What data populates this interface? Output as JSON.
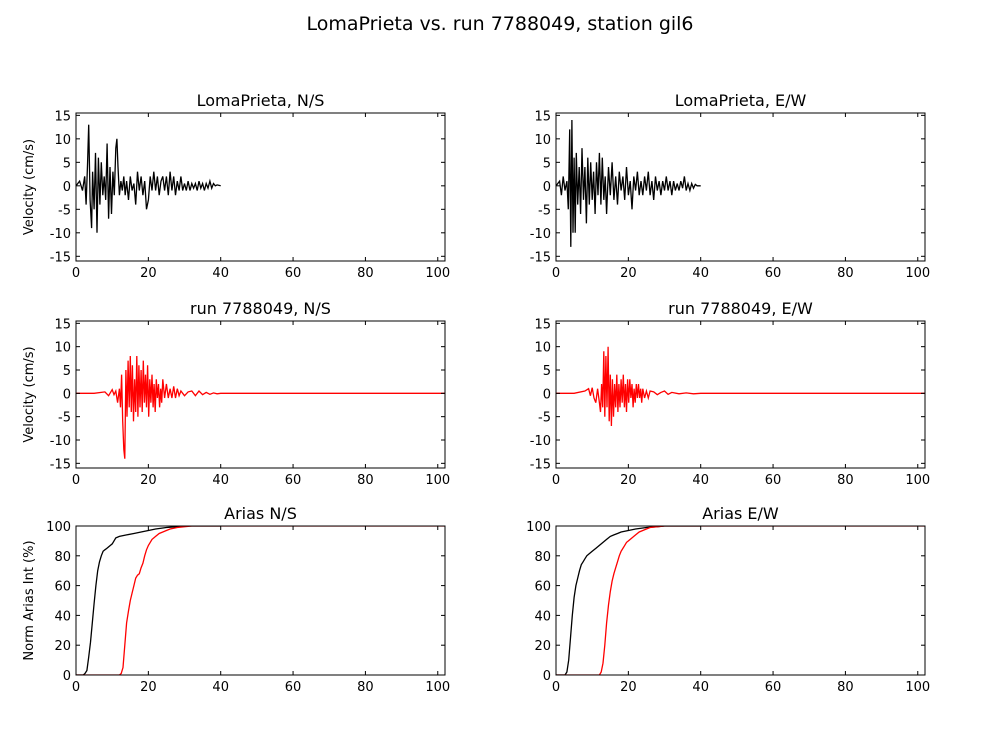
{
  "figure_title": "LomaPrieta vs. run 7788049, station gil6",
  "colors": {
    "recorded": "#000000",
    "simulated": "#ff0000"
  },
  "chart_data": [
    {
      "type": "line",
      "title": "LomaPrieta, N/S",
      "ylabel": "Velocity (cm/s)",
      "xlim": [
        0,
        102
      ],
      "ylim": [
        -16,
        15.5
      ],
      "xticks": [
        "0",
        "20",
        "40",
        "60",
        "80",
        "100"
      ],
      "yticks": [
        "-15",
        "-10",
        "-5",
        "0",
        "5",
        "10",
        "15"
      ],
      "series": [
        {
          "color": "#000000",
          "x": [
            0,
            1,
            1.8,
            2.4,
            2.8,
            3.2,
            3.5,
            3.9,
            4.3,
            4.6,
            5,
            5.4,
            5.8,
            6.2,
            6.6,
            7,
            7.4,
            7.8,
            8.2,
            8.6,
            9,
            9.4,
            9.8,
            10.2,
            10.6,
            11,
            11.3,
            11.6,
            12,
            12.4,
            12.8,
            13.2,
            13.6,
            14,
            14.5,
            15,
            15.5,
            16,
            16.5,
            17,
            17.5,
            18,
            18.5,
            19,
            19.5,
            20,
            20.5,
            21,
            21.5,
            22,
            22.5,
            23,
            23.5,
            24,
            24.5,
            25,
            25.5,
            26,
            26.5,
            27,
            27.5,
            28,
            28.5,
            29,
            29.5,
            30,
            30.5,
            31,
            31.5,
            32,
            32.5,
            33,
            33.5,
            34,
            34.5,
            35,
            35.5,
            36,
            36.5,
            37,
            37.5,
            38,
            38.5,
            39,
            40
          ],
          "values": [
            0,
            1,
            -1,
            2,
            -4,
            5,
            13,
            -3,
            -9,
            3,
            -5,
            7,
            -10,
            6,
            -4,
            5,
            -2,
            2,
            -3,
            9,
            -7,
            4,
            -6,
            3,
            -2,
            8,
            10,
            4,
            -2,
            1,
            -1,
            2,
            -2,
            1,
            -3,
            2,
            -1,
            0.5,
            -4,
            3,
            -1,
            2,
            -2,
            1,
            -5,
            -3,
            2,
            -1,
            3,
            -1,
            2,
            -2,
            1,
            2,
            -1,
            2,
            -2,
            3,
            -1,
            2,
            -2,
            1,
            -1,
            2,
            -1,
            0.5,
            -1,
            1,
            -1,
            0.5,
            -0.5,
            0.5,
            -1,
            1,
            -0.5,
            0.5,
            -1,
            0.5,
            -0.5,
            1,
            -0.5,
            0.5,
            0,
            0.2,
            0
          ]
        }
      ]
    },
    {
      "type": "line",
      "title": "LomaPrieta, E/W",
      "ylabel": "",
      "xlim": [
        0,
        102
      ],
      "ylim": [
        -16,
        15.5
      ],
      "xticks": [
        "0",
        "20",
        "40",
        "60",
        "80",
        "100"
      ],
      "yticks": [
        "-15",
        "-10",
        "-5",
        "0",
        "5",
        "10",
        "15"
      ],
      "series": [
        {
          "color": "#000000",
          "x": [
            0,
            1,
            1.5,
            2,
            2.5,
            3,
            3.4,
            3.8,
            4.1,
            4.4,
            4.7,
            5,
            5.3,
            5.6,
            6,
            6.4,
            6.8,
            7.2,
            7.6,
            8,
            8.4,
            8.8,
            9.2,
            9.6,
            10,
            10.4,
            10.8,
            11.2,
            11.6,
            12,
            12.4,
            12.8,
            13.2,
            13.6,
            14,
            14.5,
            15,
            15.5,
            16,
            16.5,
            17,
            17.5,
            18,
            18.5,
            19,
            19.5,
            20,
            20.5,
            21,
            21.5,
            22,
            22.5,
            23,
            23.5,
            24,
            24.5,
            25,
            25.5,
            26,
            26.5,
            27,
            27.5,
            28,
            28.5,
            29,
            29.5,
            30,
            30.5,
            31,
            31.5,
            32,
            32.5,
            33,
            33.5,
            34,
            34.5,
            35,
            35.5,
            36,
            36.5,
            37,
            37.5,
            38,
            38.5,
            39,
            40
          ],
          "values": [
            0,
            1,
            -2,
            2,
            -1,
            1,
            -5,
            12,
            -13,
            14,
            -10,
            6,
            -10,
            7,
            -4,
            4,
            -6,
            8,
            -3,
            4,
            -8,
            6,
            -4,
            5,
            -3,
            3,
            -6,
            5,
            -2,
            7,
            -4,
            6,
            -3,
            2,
            -6,
            4,
            -2,
            5,
            -3,
            2,
            -4,
            3,
            -1,
            2,
            -3,
            4,
            -2,
            1,
            -5,
            2,
            -1,
            3,
            -2,
            1,
            -2,
            2,
            -1,
            3,
            -2,
            1,
            -3,
            2,
            -1,
            1,
            -2,
            1,
            -1,
            2,
            -1,
            1,
            -2,
            1,
            -1,
            0.5,
            -1,
            1,
            -0.5,
            2,
            -1,
            0.5,
            -1,
            0.5,
            -0.5,
            0.3,
            0,
            0
          ]
        }
      ]
    },
    {
      "type": "line",
      "title": "run 7788049, N/S",
      "ylabel": "Velocity (cm/s)",
      "xlim": [
        0,
        102
      ],
      "ylim": [
        -16,
        15.5
      ],
      "xticks": [
        "0",
        "20",
        "40",
        "60",
        "80",
        "100"
      ],
      "yticks": [
        "-15",
        "-10",
        "-5",
        "0",
        "5",
        "10",
        "15"
      ],
      "series": [
        {
          "color": "#ff0000",
          "x": [
            0,
            5,
            8,
            9,
            10,
            10.5,
            11,
            11.5,
            12,
            12.3,
            12.6,
            12.9,
            13.2,
            13.5,
            13.8,
            14.1,
            14.4,
            14.7,
            15,
            15.3,
            15.6,
            15.9,
            16.2,
            16.5,
            16.8,
            17.1,
            17.4,
            17.7,
            18,
            18.3,
            18.6,
            18.9,
            19.2,
            19.5,
            19.8,
            20.1,
            20.4,
            20.7,
            21,
            21.3,
            21.6,
            21.9,
            22.2,
            22.5,
            22.8,
            23.1,
            23.4,
            23.7,
            24,
            24.5,
            25,
            25.5,
            26,
            26.5,
            27,
            27.5,
            28,
            28.5,
            29,
            30,
            31,
            32,
            33,
            34,
            35,
            36,
            37,
            38,
            39,
            40,
            45,
            60,
            80,
            102
          ],
          "values": [
            0,
            0,
            0.3,
            -0.5,
            0.8,
            -0.3,
            0.5,
            -2,
            1,
            -3,
            4,
            -6,
            -12,
            -14,
            5,
            -5,
            7,
            -3,
            8,
            -4,
            6,
            -6,
            3,
            -4,
            8,
            -5,
            6,
            -3,
            5,
            -4,
            7,
            -2,
            4,
            -3,
            6,
            -5,
            3,
            -2,
            4,
            -3,
            2,
            -4,
            3,
            -1,
            2,
            -3,
            1,
            -2,
            3,
            -1,
            2,
            -1,
            1,
            -1,
            1.5,
            -1,
            1,
            -0.5,
            0.5,
            -0.5,
            0.3,
            0.5,
            -0.5,
            0.5,
            -0.3,
            0.2,
            -0.2,
            0.1,
            -0.1,
            0,
            0,
            0,
            0,
            0
          ]
        }
      ]
    },
    {
      "type": "line",
      "title": "run 7788049, E/W",
      "ylabel": "",
      "xlim": [
        0,
        102
      ],
      "ylim": [
        -16,
        15.5
      ],
      "xticks": [
        "0",
        "20",
        "40",
        "60",
        "80",
        "100"
      ],
      "yticks": [
        "-15",
        "-10",
        "-5",
        "0",
        "5",
        "10",
        "15"
      ],
      "series": [
        {
          "color": "#ff0000",
          "x": [
            0,
            5,
            8,
            9,
            9.5,
            10,
            10.5,
            11,
            11.5,
            12,
            12.3,
            12.6,
            12.9,
            13.2,
            13.5,
            13.8,
            14.1,
            14.4,
            14.7,
            15,
            15.3,
            15.6,
            15.9,
            16.2,
            16.5,
            16.8,
            17.1,
            17.4,
            17.7,
            18,
            18.3,
            18.6,
            18.9,
            19.2,
            19.5,
            19.8,
            20.1,
            20.4,
            20.7,
            21,
            21.3,
            21.6,
            21.9,
            22.2,
            22.5,
            22.8,
            23.1,
            23.4,
            23.7,
            24,
            24.5,
            25,
            25.5,
            26,
            27,
            28,
            29,
            30,
            31,
            32,
            34,
            36,
            38,
            40,
            60,
            80,
            102
          ],
          "values": [
            0,
            0,
            0.5,
            1,
            -0.5,
            1.2,
            -1,
            -2,
            1,
            -2,
            -4,
            2,
            -3,
            9,
            -5,
            8,
            -3,
            10,
            -6,
            4,
            -7,
            3,
            -5,
            2,
            -3,
            4,
            -4,
            2,
            -3,
            3,
            -2,
            4,
            -3,
            2,
            -4,
            3,
            -2,
            3,
            -1,
            2,
            -3,
            1,
            -2,
            2,
            -1,
            2,
            -1,
            1,
            -2,
            1,
            -1,
            0.5,
            -1,
            0.5,
            0.3,
            -0.3,
            0.2,
            0.5,
            -0.2,
            0.2,
            -0.1,
            0.1,
            -0.1,
            0,
            0,
            0,
            0
          ]
        }
      ]
    },
    {
      "type": "line",
      "title": "Arias N/S",
      "ylabel": "Norm Arias Int (%)",
      "xlim": [
        0,
        102
      ],
      "ylim": [
        0,
        100
      ],
      "xticks": [
        "0",
        "20",
        "40",
        "60",
        "80",
        "100"
      ],
      "yticks": [
        "0",
        "20",
        "40",
        "60",
        "80",
        "100"
      ],
      "series": [
        {
          "color": "#000000",
          "x": [
            0,
            2,
            2.5,
            3,
            3.5,
            4,
            4.5,
            5,
            5.5,
            6,
            6.5,
            7,
            7.5,
            8,
            8.5,
            9,
            9.5,
            10,
            10.5,
            11,
            12,
            14,
            16,
            18,
            20,
            22,
            25,
            28,
            30,
            35,
            40
          ],
          "values": [
            0,
            0,
            1,
            3,
            12,
            22,
            35,
            48,
            60,
            70,
            76,
            80,
            83,
            84,
            85,
            86,
            87,
            88,
            90,
            92,
            93,
            94,
            95,
            96,
            97,
            98,
            99,
            99.5,
            100,
            100,
            100
          ]
        },
        {
          "color": "#ff0000",
          "x": [
            0,
            12,
            12.5,
            13,
            13.5,
            14,
            14.5,
            15,
            15.5,
            16,
            16.5,
            17,
            17.5,
            18,
            18.5,
            19,
            19.5,
            20,
            20.5,
            21,
            22,
            23,
            24,
            25,
            26,
            28,
            30,
            32,
            35,
            40,
            102
          ],
          "values": [
            0,
            0,
            1,
            5,
            20,
            35,
            43,
            50,
            55,
            60,
            65,
            67,
            68,
            72,
            75,
            80,
            84,
            87,
            89,
            91,
            93,
            95,
            96,
            97,
            98,
            99,
            99.5,
            100,
            100,
            100,
            100
          ]
        }
      ]
    },
    {
      "type": "line",
      "title": "Arias E/W",
      "ylabel": "",
      "xlim": [
        0,
        102
      ],
      "ylim": [
        0,
        100
      ],
      "xticks": [
        "0",
        "20",
        "40",
        "60",
        "80",
        "100"
      ],
      "yticks": [
        "0",
        "20",
        "40",
        "60",
        "80",
        "100"
      ],
      "series": [
        {
          "color": "#000000",
          "x": [
            0,
            2.5,
            3,
            3.5,
            4,
            4.5,
            5,
            5.5,
            6,
            6.5,
            7,
            7.5,
            8,
            8.5,
            9,
            10,
            11,
            12,
            13,
            14,
            15,
            16,
            17,
            18,
            20,
            22,
            25,
            28,
            30,
            35,
            40
          ],
          "values": [
            0,
            0,
            2,
            10,
            25,
            40,
            52,
            60,
            65,
            70,
            74,
            76,
            78,
            80,
            81,
            83,
            85,
            87,
            89,
            91,
            93,
            94,
            95,
            96,
            97,
            98,
            99,
            99.5,
            100,
            100,
            100
          ]
        },
        {
          "color": "#ff0000",
          "x": [
            0,
            12,
            12.5,
            13,
            13.5,
            14,
            14.5,
            15,
            15.5,
            16,
            16.5,
            17,
            17.5,
            18,
            18.5,
            19,
            19.5,
            20,
            21,
            22,
            23,
            24,
            25,
            26,
            28,
            30,
            35,
            40,
            102
          ],
          "values": [
            0,
            0,
            2,
            8,
            20,
            35,
            47,
            56,
            63,
            68,
            72,
            76,
            80,
            83,
            85,
            87,
            89,
            90,
            92,
            94,
            96,
            97,
            98,
            99,
            99.5,
            100,
            100,
            100,
            100
          ]
        }
      ]
    }
  ]
}
